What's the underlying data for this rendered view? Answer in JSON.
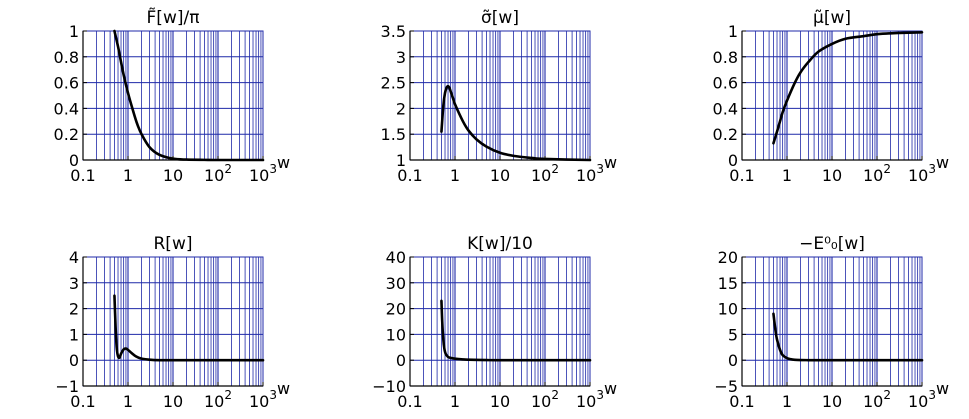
{
  "chart_data": [
    {
      "type": "line",
      "title": "F̃[w]/π",
      "xlabel": "w",
      "x_scale": "log",
      "xlim": [
        0.1,
        1000
      ],
      "ylim": [
        0,
        1
      ],
      "yticks": [
        "0",
        "0.2",
        "0.4",
        "0.6",
        "0.8",
        "1"
      ],
      "ytick_values": [
        0,
        0.2,
        0.4,
        0.6,
        0.8,
        1
      ],
      "grid": true,
      "series": [
        {
          "x": [
            0.5,
            0.6,
            0.7,
            0.8,
            1,
            1.3,
            1.6,
            2,
            3,
            5,
            10,
            20,
            50,
            100,
            1000
          ],
          "y": [
            1.0,
            0.88,
            0.76,
            0.66,
            0.52,
            0.38,
            0.28,
            0.2,
            0.1,
            0.04,
            0.01,
            0.003,
            0.001,
            0.0,
            0.0
          ]
        }
      ]
    },
    {
      "type": "line",
      "title": "σ̃[w]",
      "xlabel": "w",
      "x_scale": "log",
      "xlim": [
        0.1,
        1000
      ],
      "ylim": [
        1,
        3.5
      ],
      "yticks": [
        "1",
        "1.5",
        "2",
        "2.5",
        "3",
        "3.5"
      ],
      "ytick_values": [
        1,
        1.5,
        2,
        2.5,
        3,
        3.5
      ],
      "grid": true,
      "series": [
        {
          "x": [
            0.5,
            0.55,
            0.6,
            0.65,
            0.7,
            0.75,
            0.8,
            0.9,
            1,
            1.5,
            2,
            3,
            5,
            10,
            20,
            50,
            100,
            1000
          ],
          "y": [
            1.55,
            2.05,
            2.3,
            2.4,
            2.43,
            2.4,
            2.33,
            2.2,
            2.08,
            1.75,
            1.57,
            1.4,
            1.26,
            1.14,
            1.08,
            1.04,
            1.02,
            1.0
          ]
        }
      ]
    },
    {
      "type": "line",
      "title": "μ̃[w]",
      "xlabel": "w",
      "x_scale": "log",
      "xlim": [
        0.1,
        1000
      ],
      "ylim": [
        0,
        1
      ],
      "yticks": [
        "0",
        "0.2",
        "0.4",
        "0.6",
        "0.8",
        "1"
      ],
      "ytick_values": [
        0,
        0.2,
        0.4,
        0.6,
        0.8,
        1
      ],
      "grid": true,
      "series": [
        {
          "x": [
            0.5,
            0.6,
            0.7,
            0.8,
            1,
            1.5,
            2,
            3,
            5,
            10,
            20,
            50,
            100,
            300,
            1000
          ],
          "y": [
            0.13,
            0.22,
            0.3,
            0.37,
            0.46,
            0.6,
            0.68,
            0.76,
            0.84,
            0.9,
            0.94,
            0.96,
            0.975,
            0.985,
            0.99
          ]
        }
      ]
    },
    {
      "type": "line",
      "title": "R[w]",
      "xlabel": "w",
      "x_scale": "log",
      "xlim": [
        0.1,
        1000
      ],
      "ylim": [
        -1,
        4
      ],
      "yticks": [
        "−1",
        "0",
        "1",
        "2",
        "3",
        "4"
      ],
      "ytick_values": [
        -1,
        0,
        1,
        2,
        3,
        4
      ],
      "grid": true,
      "series": [
        {
          "x": [
            0.5,
            0.53,
            0.56,
            0.6,
            0.65,
            0.7,
            0.8,
            0.9,
            1,
            1.2,
            1.5,
            2,
            3,
            5,
            10,
            100,
            1000
          ],
          "y": [
            2.5,
            1.3,
            0.5,
            0.15,
            0.1,
            0.25,
            0.42,
            0.45,
            0.4,
            0.28,
            0.15,
            0.06,
            0.02,
            0.0,
            0.0,
            0.0,
            0.0
          ]
        }
      ]
    },
    {
      "type": "line",
      "title": "K[w]/10",
      "xlabel": "w",
      "x_scale": "log",
      "xlim": [
        0.1,
        1000
      ],
      "ylim": [
        -10,
        40
      ],
      "yticks": [
        "−10",
        "0",
        "10",
        "20",
        "30",
        "40"
      ],
      "ytick_values": [
        -10,
        0,
        10,
        20,
        30,
        40
      ],
      "grid": true,
      "series": [
        {
          "x": [
            0.5,
            0.52,
            0.55,
            0.58,
            0.62,
            0.7,
            0.8,
            1,
            1.5,
            2,
            5,
            10,
            100,
            1000
          ],
          "y": [
            23,
            15,
            8,
            4.5,
            2.5,
            1.3,
            0.9,
            0.6,
            0.3,
            0.2,
            0.05,
            0.0,
            0.0,
            0.0
          ]
        }
      ]
    },
    {
      "type": "line",
      "title": "−E⁰₀[w]",
      "xlabel": "w",
      "x_scale": "log",
      "xlim": [
        0.1,
        1000
      ],
      "ylim": [
        -5,
        20
      ],
      "yticks": [
        "−5",
        "0",
        "5",
        "10",
        "15",
        "20"
      ],
      "ytick_values": [
        -5,
        0,
        5,
        10,
        15,
        20
      ],
      "grid": true,
      "series": [
        {
          "x": [
            0.5,
            0.55,
            0.6,
            0.7,
            0.8,
            1,
            1.2,
            1.5,
            2,
            3,
            5,
            10,
            100,
            1000
          ],
          "y": [
            9,
            6,
            4,
            2,
            1.0,
            0.4,
            0.2,
            0.08,
            0.03,
            0.01,
            0.0,
            0.0,
            0.0,
            0.0
          ]
        }
      ]
    }
  ],
  "xticks": [
    "0.1",
    "1",
    "10",
    "10",
    "10"
  ],
  "xtick_sups": [
    "",
    "",
    "",
    "2",
    "3"
  ],
  "colors": {
    "grid": "#1f2aa8",
    "line": "#000000",
    "axis": "#000000"
  }
}
